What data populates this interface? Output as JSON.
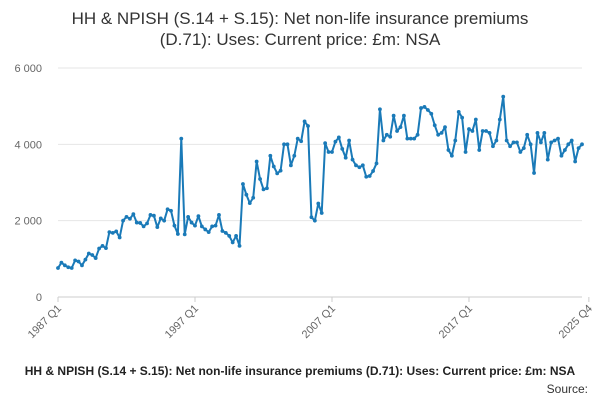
{
  "page": {
    "title_line1": "HH & NPISH (S.14 + S.15): Net non-life insurance premiums",
    "title_line2": "(D.71): Uses: Current price: £m: NSA",
    "caption": "HH & NPISH (S.14 + S.15): Net non-life insurance premiums (D.71): Uses: Current price: £m: NSA",
    "source": "Source:"
  },
  "colors": {
    "line": "#1a7ab8",
    "grid": "#e6e6e6",
    "axis": "#cccccc",
    "tick_text": "#666666"
  },
  "chart_data": {
    "type": "line",
    "title": "HH & NPISH (S.14 + S.15): Net non-life insurance premiums (D.71): Uses: Current price: £m: NSA",
    "xlabel": "",
    "ylabel": "",
    "ylim": [
      0,
      6000
    ],
    "yticks": [
      0,
      2000,
      4000,
      6000
    ],
    "ytick_labels": [
      "0",
      "2 000",
      "4 000",
      "6 000"
    ],
    "xticks": [
      0,
      40,
      80,
      120,
      155
    ],
    "xtick_labels": [
      "1987 Q1",
      "1997 Q1",
      "2007 Q1",
      "2017 Q1",
      "2025 Q4"
    ],
    "grid": true,
    "series": [
      {
        "name": "Net non-life insurance premiums",
        "start": "1987 Q1",
        "frequency": "quarterly",
        "values": [
          760,
          900,
          830,
          780,
          760,
          960,
          930,
          830,
          980,
          1140,
          1100,
          1020,
          1270,
          1340,
          1280,
          1700,
          1680,
          1720,
          1560,
          2000,
          2100,
          2050,
          2170,
          1950,
          1940,
          1850,
          1930,
          2150,
          2130,
          1830,
          2060,
          2000,
          2300,
          2260,
          1870,
          1650,
          4150,
          1640,
          2100,
          1950,
          1870,
          2120,
          1850,
          1770,
          1700,
          1850,
          1870,
          2150,
          1730,
          1680,
          1600,
          1430,
          1600,
          1340,
          2960,
          2680,
          2460,
          2600,
          3550,
          3090,
          2820,
          2850,
          3700,
          3420,
          3240,
          3310,
          4000,
          4000,
          3450,
          3700,
          4150,
          4080,
          4600,
          4480,
          2090,
          2000,
          2450,
          2200,
          4030,
          3800,
          3800,
          4070,
          4180,
          3880,
          3650,
          4100,
          3600,
          3450,
          3400,
          3450,
          3150,
          3170,
          3300,
          3500,
          4920,
          4100,
          4250,
          4200,
          4750,
          4350,
          4450,
          4750,
          4150,
          4150,
          4150,
          4250,
          4950,
          4980,
          4900,
          4800,
          4500,
          4250,
          4300,
          4450,
          3850,
          3700,
          4100,
          4850,
          4700,
          3800,
          4400,
          4350,
          4650,
          3850,
          4350,
          4350,
          4300,
          3950,
          4100,
          4650,
          5250,
          4100,
          3950,
          4050,
          4050,
          3800,
          3900,
          4250,
          4000,
          3250,
          4300,
          4050,
          4300,
          3600,
          4050,
          4100,
          4150,
          3700,
          3850,
          4000,
          4100,
          3550,
          3900,
          4000
        ]
      }
    ]
  }
}
